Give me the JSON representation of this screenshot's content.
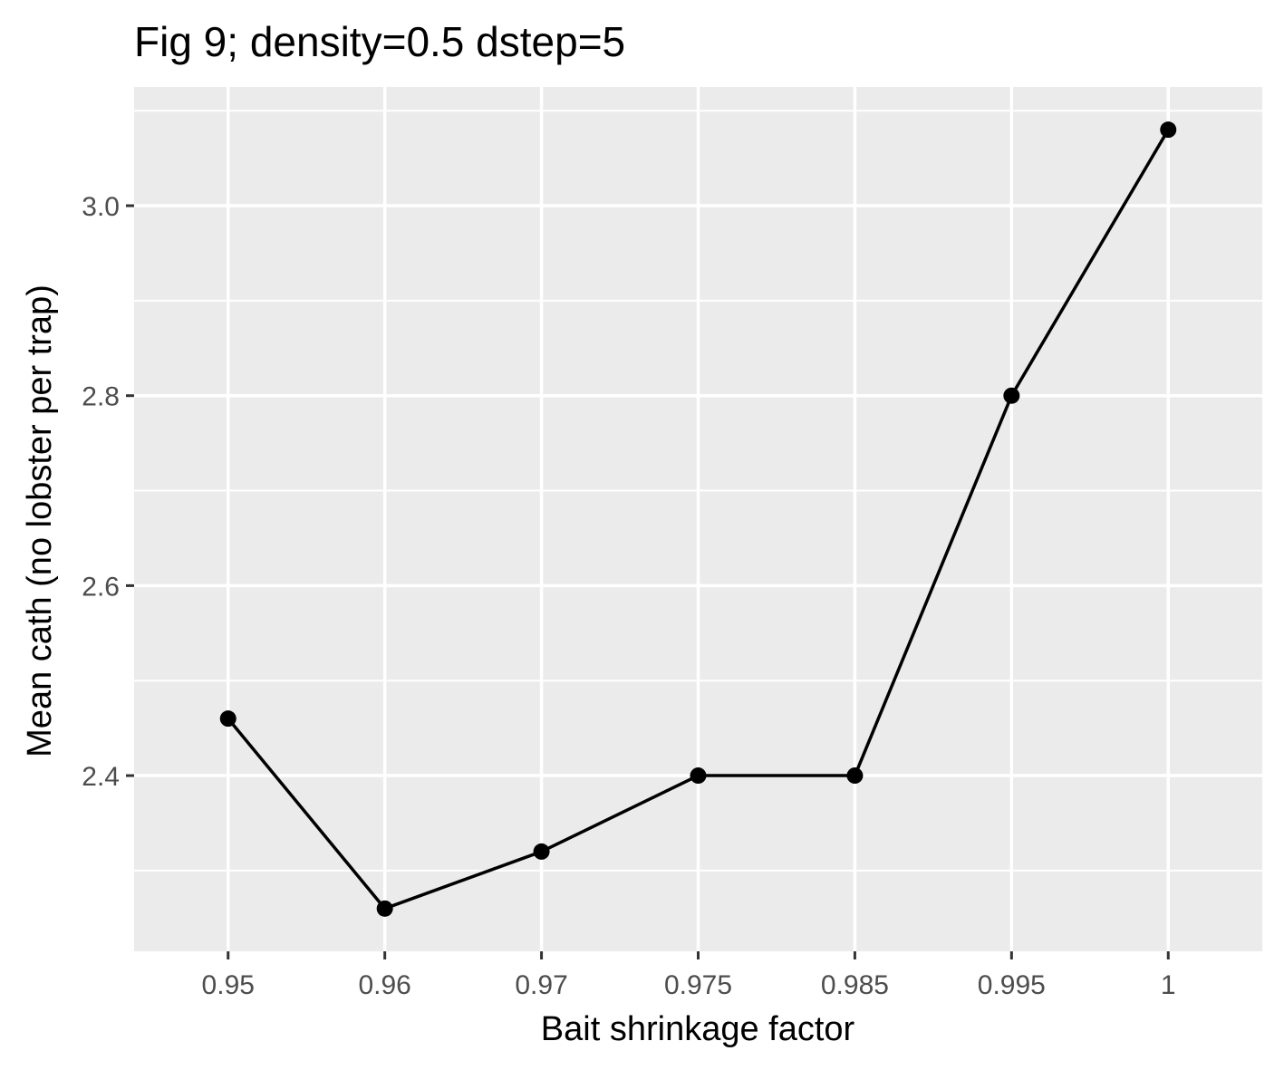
{
  "chart_data": {
    "type": "line",
    "title": "Fig 9; density=0.5 dstep=5",
    "xlabel": "Bait shrinkage factor",
    "ylabel": "Mean cath (no lobster per trap)",
    "categories": [
      "0.95",
      "0.96",
      "0.97",
      "0.975",
      "0.985",
      "0.995",
      "1"
    ],
    "values": [
      2.46,
      2.26,
      2.32,
      2.4,
      2.4,
      2.8,
      3.08
    ],
    "ylim": [
      2.215,
      3.125
    ],
    "yticks": [
      2.4,
      2.6,
      2.8,
      3.0
    ],
    "ytick_labels": [
      "2.4",
      "2.6",
      "2.8",
      "3.0"
    ],
    "y_minor_ticks": [
      2.3,
      2.5,
      2.7,
      2.9,
      3.1
    ],
    "grid": true,
    "legend": "none",
    "colors": {
      "panel": "#ebebeb",
      "grid": "#ffffff",
      "line": "#000000",
      "tick": "#333333"
    }
  }
}
